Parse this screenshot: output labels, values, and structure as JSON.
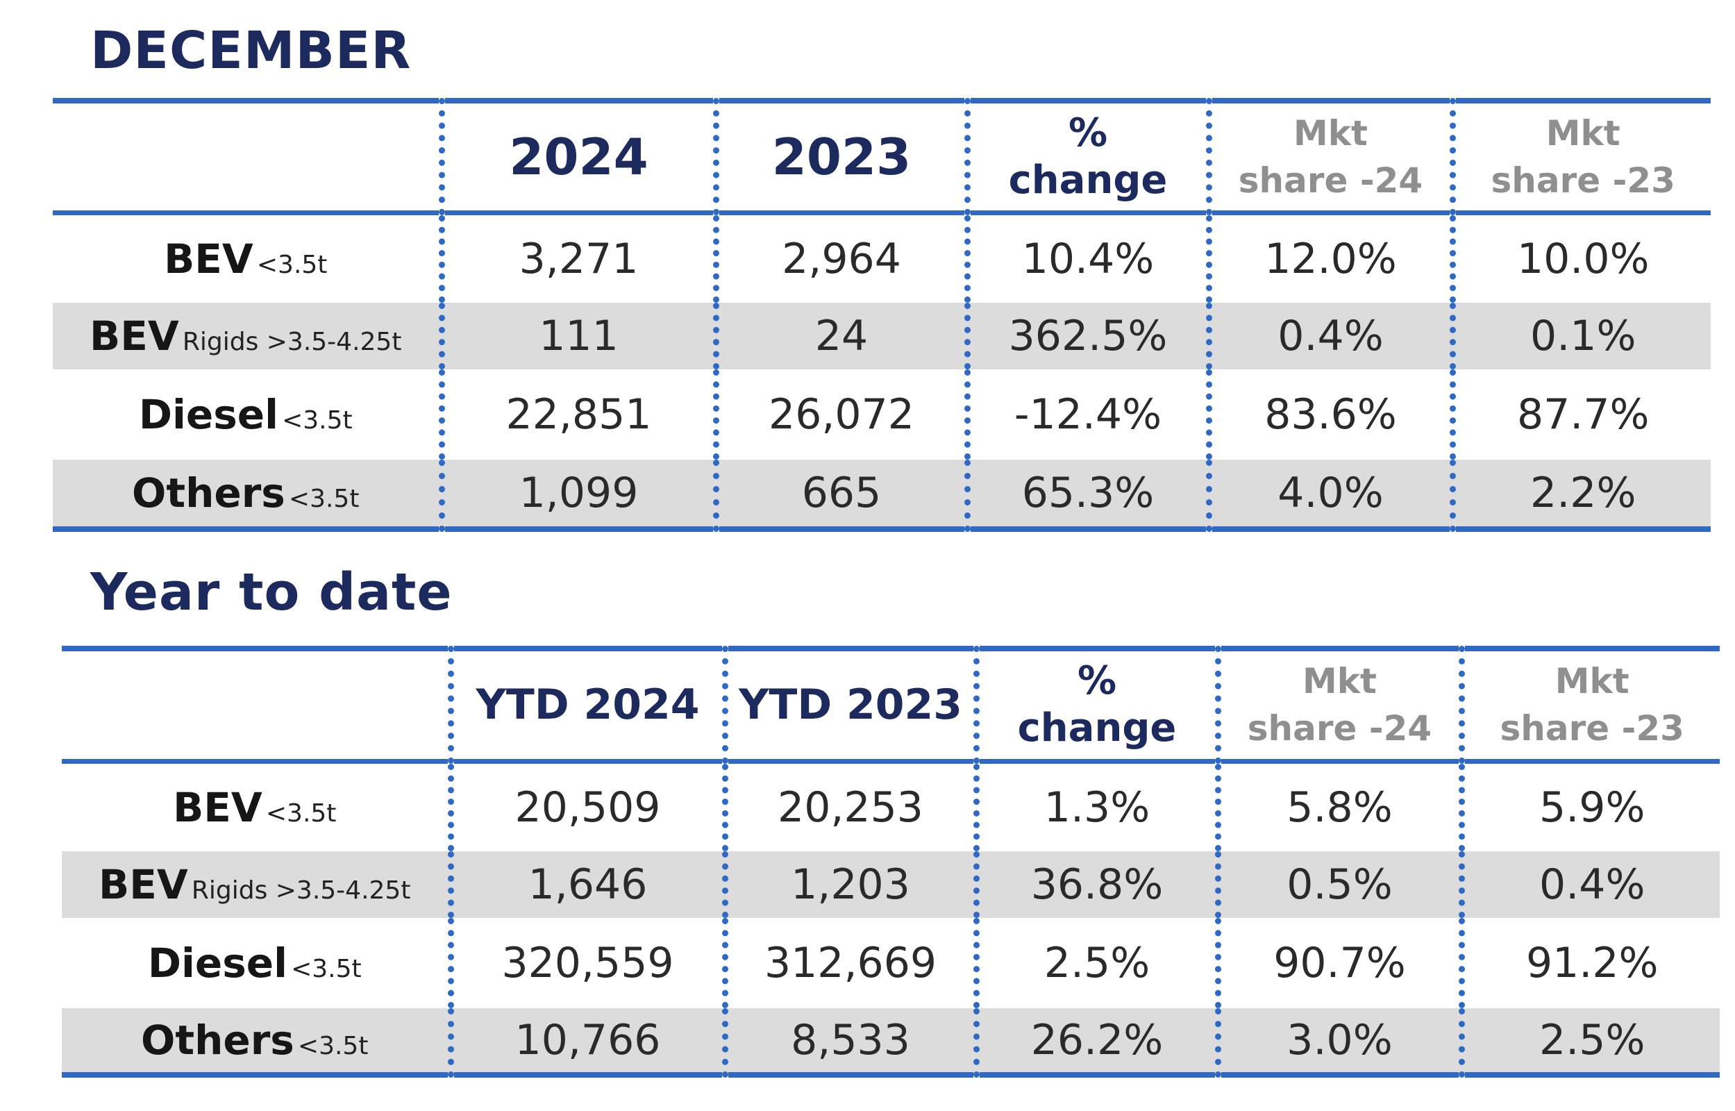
{
  "december": {
    "title": "DECEMBER",
    "headers": {
      "col1": "2024",
      "col2": "2023",
      "change_line1": "%",
      "change_line2": "change",
      "mkt24_line1": "Mkt",
      "mkt24_line2": "share -24",
      "mkt23_line1": "Mkt",
      "mkt23_line2": "share -23"
    },
    "rows": [
      {
        "label": "BEV",
        "sub": "<3.5t",
        "v2024": "3,271",
        "v2023": "2,964",
        "change": "10.4%",
        "mkt24": "12.0%",
        "mkt23": "10.0%"
      },
      {
        "label": "BEV",
        "sub": "Rigids >3.5-4.25t",
        "v2024": "111",
        "v2023": "24",
        "change": "362.5%",
        "mkt24": "0.4%",
        "mkt23": "0.1%"
      },
      {
        "label": "Diesel",
        "sub": "<3.5t",
        "v2024": "22,851",
        "v2023": "26,072",
        "change": "-12.4%",
        "mkt24": "83.6%",
        "mkt23": "87.7%"
      },
      {
        "label": "Others",
        "sub": "<3.5t",
        "v2024": "1,099",
        "v2023": "665",
        "change": "65.3%",
        "mkt24": "4.0%",
        "mkt23": "2.2%"
      }
    ]
  },
  "ytd": {
    "title": "Year to date",
    "headers": {
      "col1": "YTD 2024",
      "col2": "YTD 2023",
      "change_line1": "%",
      "change_line2": "change",
      "mkt24_line1": "Mkt",
      "mkt24_line2": "share -24",
      "mkt23_line1": "Mkt",
      "mkt23_line2": "share -23"
    },
    "rows": [
      {
        "label": "BEV",
        "sub": "<3.5t",
        "v2024": "20,509",
        "v2023": "20,253",
        "change": "1.3%",
        "mkt24": "5.8%",
        "mkt23": "5.9%"
      },
      {
        "label": "BEV",
        "sub": "Rigids >3.5-4.25t",
        "v2024": "1,646",
        "v2023": "1,203",
        "change": "36.8%",
        "mkt24": "0.5%",
        "mkt23": "0.4%"
      },
      {
        "label": "Diesel",
        "sub": "<3.5t",
        "v2024": "320,559",
        "v2023": "312,669",
        "change": "2.5%",
        "mkt24": "90.7%",
        "mkt23": "91.2%"
      },
      {
        "label": "Others",
        "sub": "<3.5t",
        "v2024": "10,766",
        "v2023": "8,533",
        "change": "26.2%",
        "mkt24": "3.0%",
        "mkt23": "2.5%"
      }
    ]
  }
}
